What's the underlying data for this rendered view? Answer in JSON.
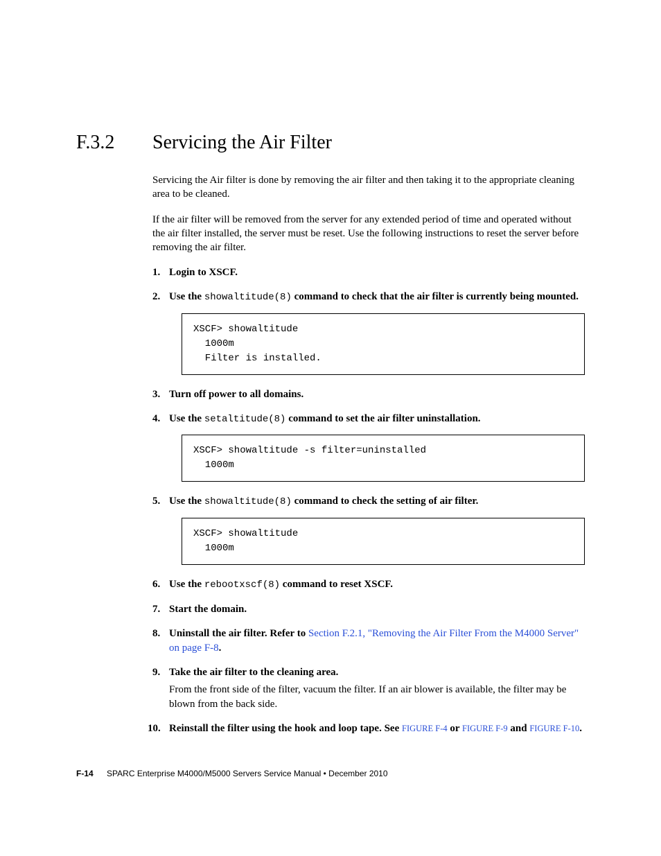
{
  "heading": {
    "number": "F.3.2",
    "title": "Servicing the Air Filter"
  },
  "paragraphs": {
    "p1": "Servicing the Air filter is done by removing the air filter and then taking it to the appropriate cleaning area to be cleaned.",
    "p2": "If the air filter will be removed from the server for any extended period of time and operated without the air filter installed, the server must be reset. Use the following instructions to reset the server before removing the air filter."
  },
  "steps": {
    "s1": "Login to XSCF.",
    "s2_pre": "Use the ",
    "s2_cmd": "showaltitude(8)",
    "s2_post": " command to check that the air filter is currently being mounted.",
    "s3": "Turn off power to all domains.",
    "s4_pre": "Use the ",
    "s4_cmd": "setaltitude(8)",
    "s4_post": "  command to set the air filter uninstallation.",
    "s5_pre": "Use the ",
    "s5_cmd": "showaltitude(8)",
    "s5_post": " command to check the setting of air filter.",
    "s6_pre": "Use the ",
    "s6_cmd": "rebootxscf(8)",
    "s6_post": " command to reset XSCF.",
    "s7": "Start the domain.",
    "s8_pre": "Uninstall the air filter. Refer to ",
    "s8_link": "Section F.2.1, \"Removing the Air Filter From the M4000 Server\" on page F-8",
    "s8_post": ".",
    "s9_main": "Take the air filter to the cleaning area.",
    "s9_sub": "From the front side of the filter, vacuum the filter. If an air blower is available, the filter may be blown from the back side.",
    "s10_pre": "Reinstall the filter using the hook and loop tape. See ",
    "s10_x1": "FIGURE F-4",
    "s10_mid1": " or ",
    "s10_x2": "FIGURE F-9",
    "s10_mid2": " and ",
    "s10_x3": "FIGURE F-10",
    "s10_post": "."
  },
  "code": {
    "c1": "XSCF> showaltitude\n  1000m\n  Filter is installed.",
    "c2": "XSCF> showaltitude -s filter=uninstalled\n  1000m",
    "c3": "XSCF> showaltitude\n  1000m"
  },
  "footer": {
    "page": "F-14",
    "text": "SPARC Enterprise M4000/M5000 Servers Service Manual • December 2010"
  },
  "colors": {
    "link": "#2a4fd7",
    "text": "#000000",
    "background": "#ffffff",
    "border": "#000000"
  },
  "fonts": {
    "body_size": 15,
    "heading_size": 28,
    "mono_size": 14,
    "footer_size": 12
  }
}
